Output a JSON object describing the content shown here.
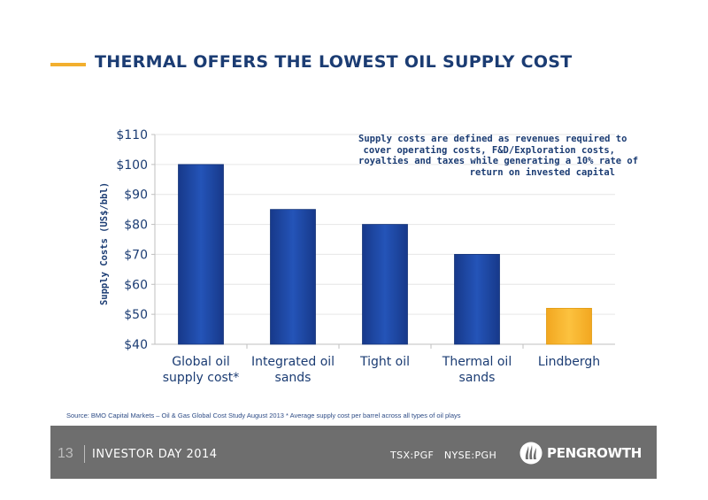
{
  "slide": {
    "title": "THERMAL OFFERS THE LOWEST OIL SUPPLY COST",
    "accent_color": "#F2AF2E",
    "title_color": "#1B3C73"
  },
  "note": {
    "lines": [
      "Supply costs are defined as revenues required to",
      "cover operating costs, F&D/Exploration costs,",
      "royalties and taxes while generating a 10% rate of",
      "return on invested capital"
    ]
  },
  "source_text": "Source: BMO Capital Markets – Oil & Gas Global Cost Study August 2013 * Average supply cost per barrel across all types of oil plays",
  "footer": {
    "page_number": "13",
    "event": "INVESTOR DAY 2014",
    "tickers": "TSX:PGF   NYSE:PGH",
    "logo_text": "PENGROWTH",
    "logo_icon": "pengrowth-flame-icon",
    "background": "#6E6E6E"
  },
  "chart_data": {
    "type": "bar",
    "categories": [
      [
        "Global oil",
        "supply cost*"
      ],
      [
        "Integrated oil",
        "sands"
      ],
      [
        "Tight oil"
      ],
      [
        "Thermal oil",
        "sands"
      ],
      [
        "Lindbergh"
      ]
    ],
    "values": [
      100,
      85,
      80,
      70,
      52
    ],
    "colors": [
      "#1F4AA8",
      "#1F4AA8",
      "#1F4AA8",
      "#1F4AA8",
      "#F9B934"
    ],
    "ylabel": "Supply Costs (US$/bbl)",
    "ylim": [
      40,
      110
    ],
    "yticks": [
      40,
      50,
      60,
      70,
      80,
      90,
      100,
      110
    ],
    "ytick_labels": [
      "$40",
      "$50",
      "$60",
      "$70",
      "$80",
      "$90",
      "$100",
      "$110"
    ],
    "grid": true,
    "legend": "none"
  }
}
